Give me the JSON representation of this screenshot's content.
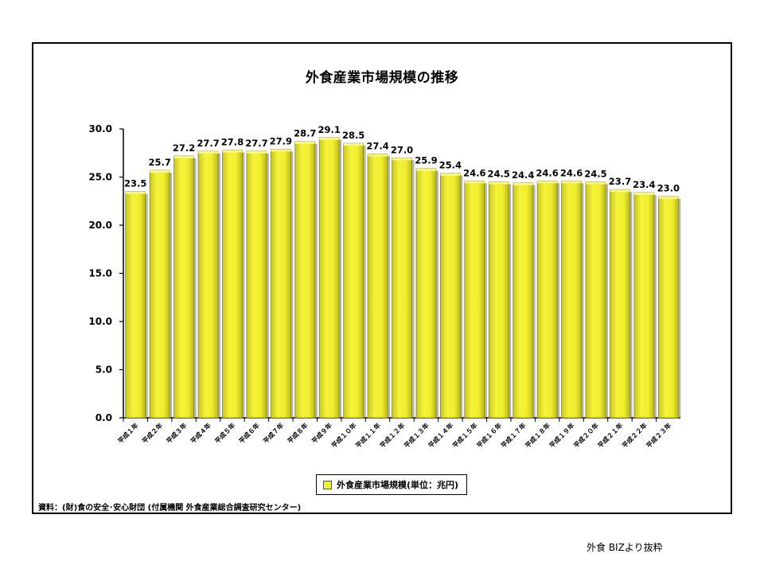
{
  "chart_data": {
    "type": "bar",
    "title": "外食産業市場規模の推移",
    "categories": [
      "平成１年",
      "平成２年",
      "平成３年",
      "平成４年",
      "平成５年",
      "平成６年",
      "平成７年",
      "平成８年",
      "平成９年",
      "平成１０年",
      "平成１１年",
      "平成１２年",
      "平成１３年",
      "平成１４年",
      "平成１５年",
      "平成１６年",
      "平成１７年",
      "平成１８年",
      "平成１９年",
      "平成２０年",
      "平成２１年",
      "平成２２年",
      "平成２３年"
    ],
    "series": [
      {
        "name": "外食産業市場規模(単位：兆円)",
        "values": [
          23.5,
          25.7,
          27.2,
          27.7,
          27.8,
          27.7,
          27.9,
          28.7,
          29.1,
          28.5,
          27.4,
          27.0,
          25.9,
          25.4,
          24.6,
          24.5,
          24.4,
          24.6,
          24.6,
          24.5,
          23.7,
          23.4,
          23.0
        ],
        "data_labels": [
          "23.5",
          "25.7",
          "27.2",
          "27.7",
          "27.8",
          "27.7",
          "27.9",
          "28.7",
          "29.1",
          "28.5",
          "27.4",
          "27.0",
          "25.9",
          "25.4",
          "24.6",
          "24.5",
          "24.4",
          "24.6",
          "24.6",
          "24.5",
          "23.7",
          "23.4",
          "23.0"
        ],
        "color": "#f0ee30"
      }
    ],
    "ylim": [
      0,
      30
    ],
    "yticks": [
      "0.0",
      "5.0",
      "10.0",
      "15.0",
      "20.0",
      "25.0",
      "30.0"
    ],
    "grid": false,
    "legend_position": "bottom"
  },
  "source_note": "資料：(財)食の安全･安心財団 (付属機関 外食産業総合調査研究センター)",
  "credit": "外食 BIZより抜粋"
}
